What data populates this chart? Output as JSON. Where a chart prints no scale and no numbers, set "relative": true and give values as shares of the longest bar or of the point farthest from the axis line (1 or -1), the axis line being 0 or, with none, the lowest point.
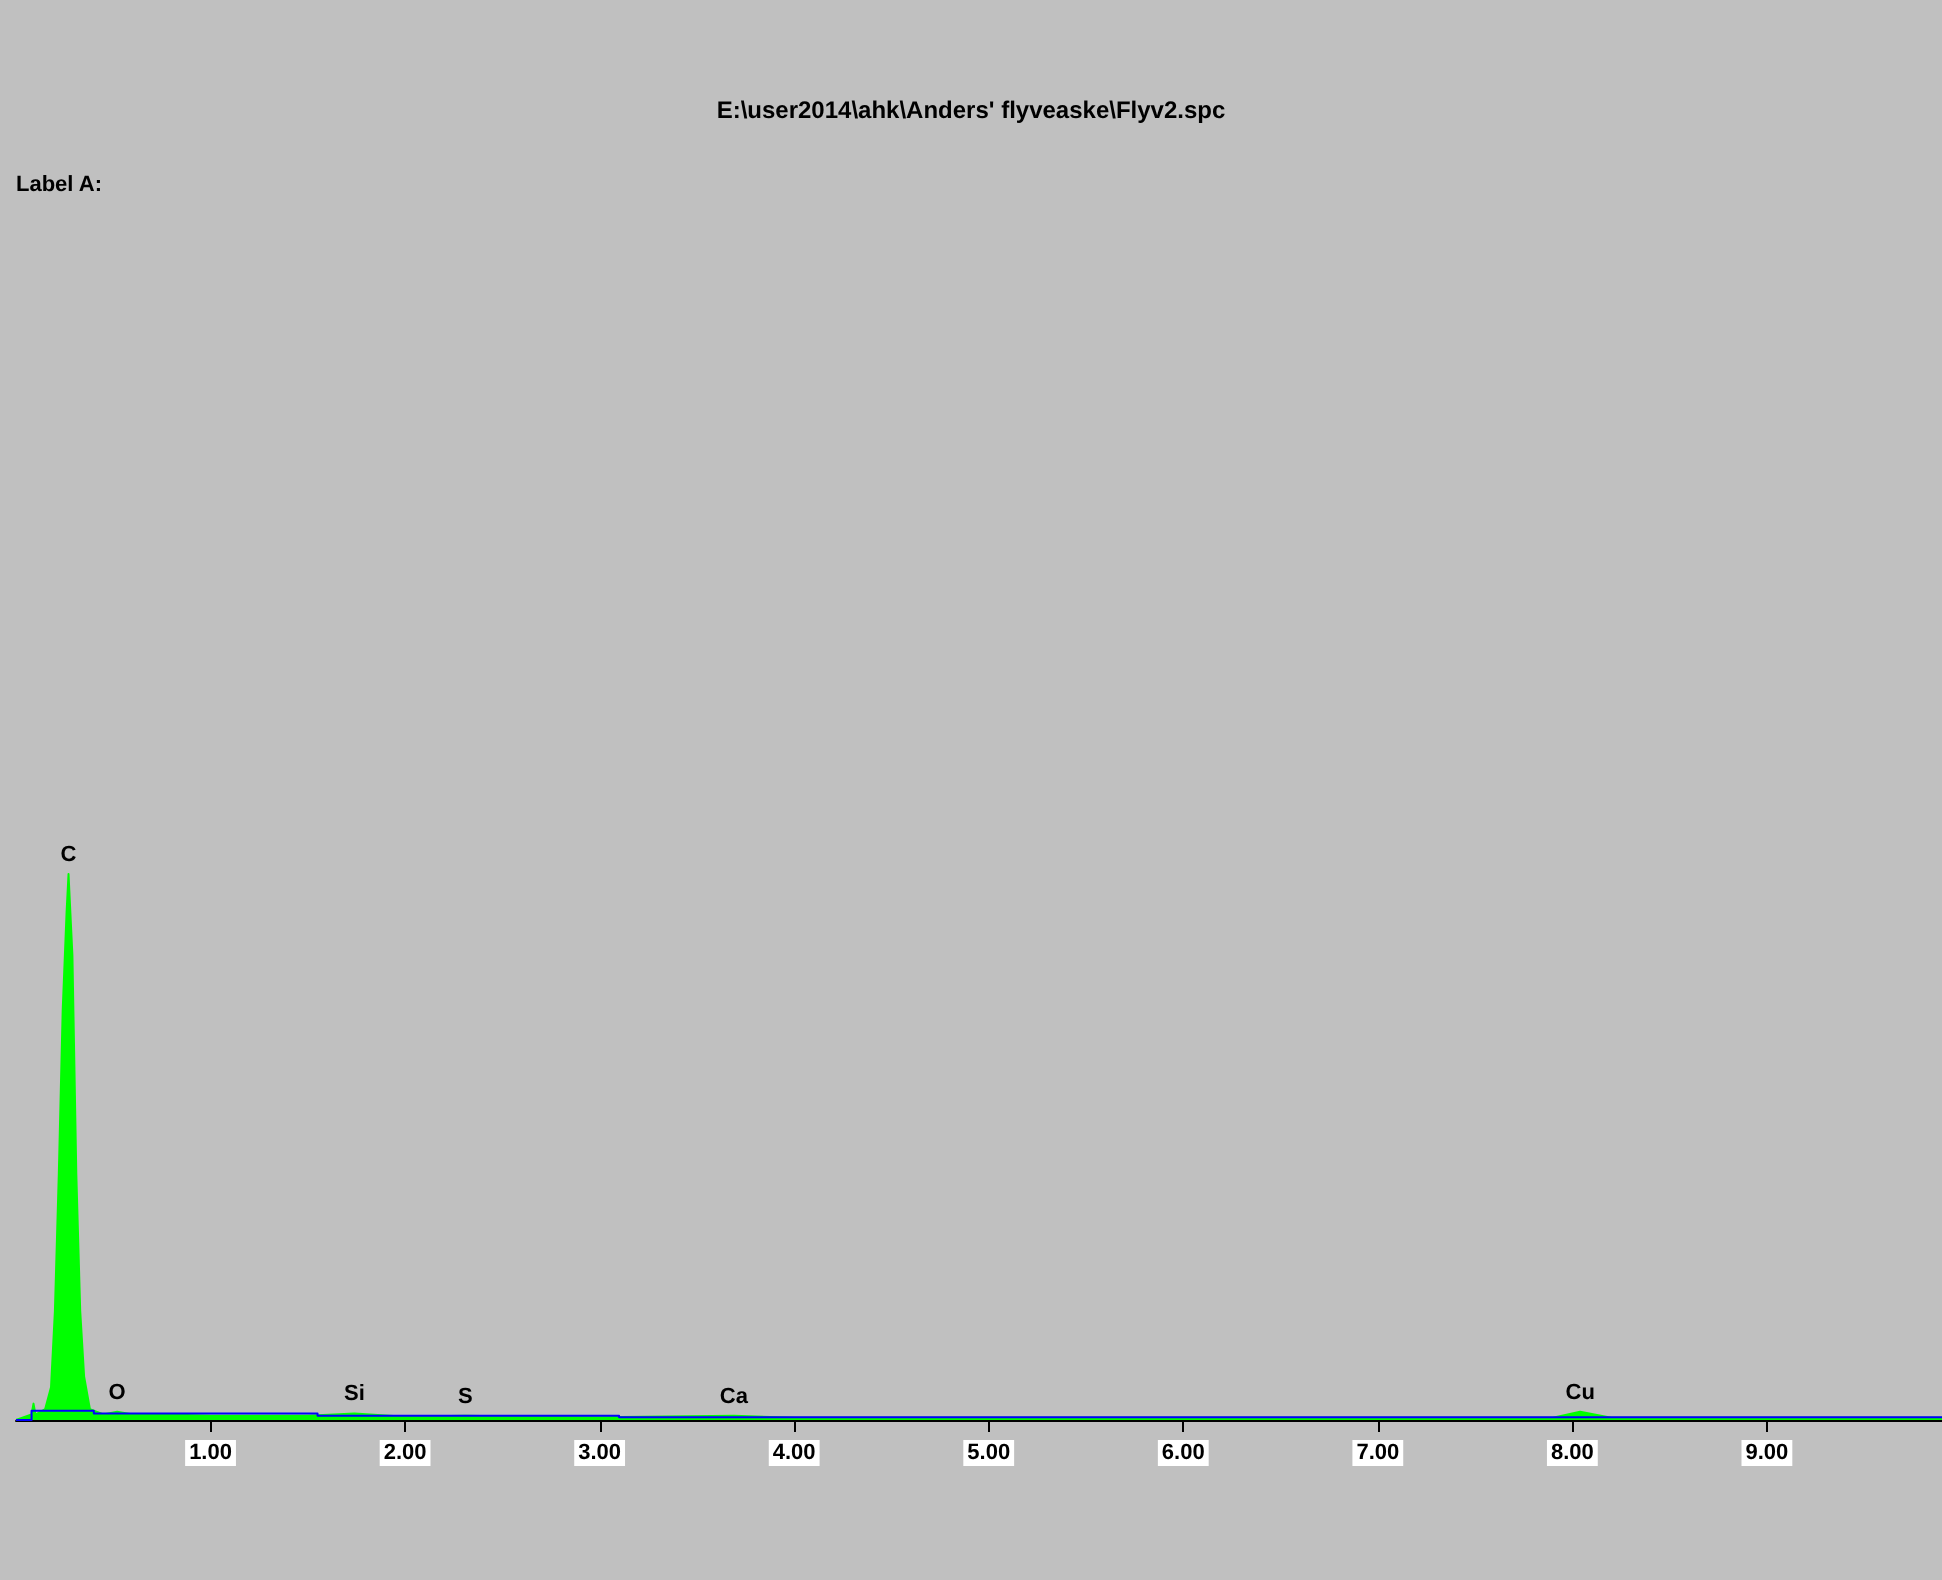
{
  "chart_data": {
    "type": "area",
    "relative": true,
    "title": "E:\\user2014\\ahk\\Anders' flyveaske\\Flyv2.spc",
    "annotations": [
      "Label A:",
      {
        "text": "C",
        "x": 0.27,
        "y": 1
      },
      {
        "text": "O",
        "x": 0.52,
        "y": 0.015
      },
      {
        "text": "Si",
        "x": 1.74,
        "y": 0.012
      },
      {
        "text": "S",
        "x": 2.31,
        "y": 0.008
      },
      {
        "text": "Ca",
        "x": 3.69,
        "y": 0.008
      },
      {
        "text": "Cu",
        "x": 8.04,
        "y": 0.015
      }
    ],
    "xlim": [
      0,
      9.9
    ],
    "xticks": [
      {
        "value": 1,
        "label": "1.00"
      },
      {
        "value": 2,
        "label": "2.00"
      },
      {
        "value": 3,
        "label": "3.00"
      },
      {
        "value": 4,
        "label": "4.00"
      },
      {
        "value": 5,
        "label": "5.00"
      },
      {
        "value": 6,
        "label": "6.00"
      },
      {
        "value": 7,
        "label": "7.00"
      },
      {
        "value": 8,
        "label": "8.00"
      },
      {
        "value": 9,
        "label": "9.00"
      }
    ],
    "series": [
      {
        "color": "#00ff00",
        "x": [
          0,
          0.08,
          0.09,
          0.1,
          0.15,
          0.18,
          0.2,
          0.22,
          0.24,
          0.26,
          0.27,
          0.29,
          0.31,
          0.33,
          0.35,
          0.38,
          0.45,
          0.52,
          0.6,
          0.8,
          1,
          1.5,
          1.74,
          2,
          2.31,
          2.6,
          3,
          3.69,
          4,
          5,
          6,
          7,
          7.9,
          8.04,
          8.2,
          9,
          9.9
        ],
        "values": [
          0,
          0.01,
          0.03,
          0.01,
          0.02,
          0.06,
          0.2,
          0.45,
          0.75,
          0.93,
          1,
          0.85,
          0.45,
          0.2,
          0.08,
          0.02,
          0.01,
          0.015,
          0.01,
          0.01,
          0.008,
          0.008,
          0.012,
          0.006,
          0.008,
          0.006,
          0.005,
          0.008,
          0.004,
          0.004,
          0.004,
          0.004,
          0.004,
          0.015,
          0.004,
          0.004,
          0.004
        ]
      },
      {
        "type": "step",
        "color": "#0000ff",
        "x": [
          0,
          0.08,
          0.4,
          0.8,
          1.55,
          3.1,
          9.9
        ],
        "values": [
          0,
          0.017,
          0.012,
          0.012,
          0.008,
          0.005,
          0.003
        ]
      }
    ]
  }
}
